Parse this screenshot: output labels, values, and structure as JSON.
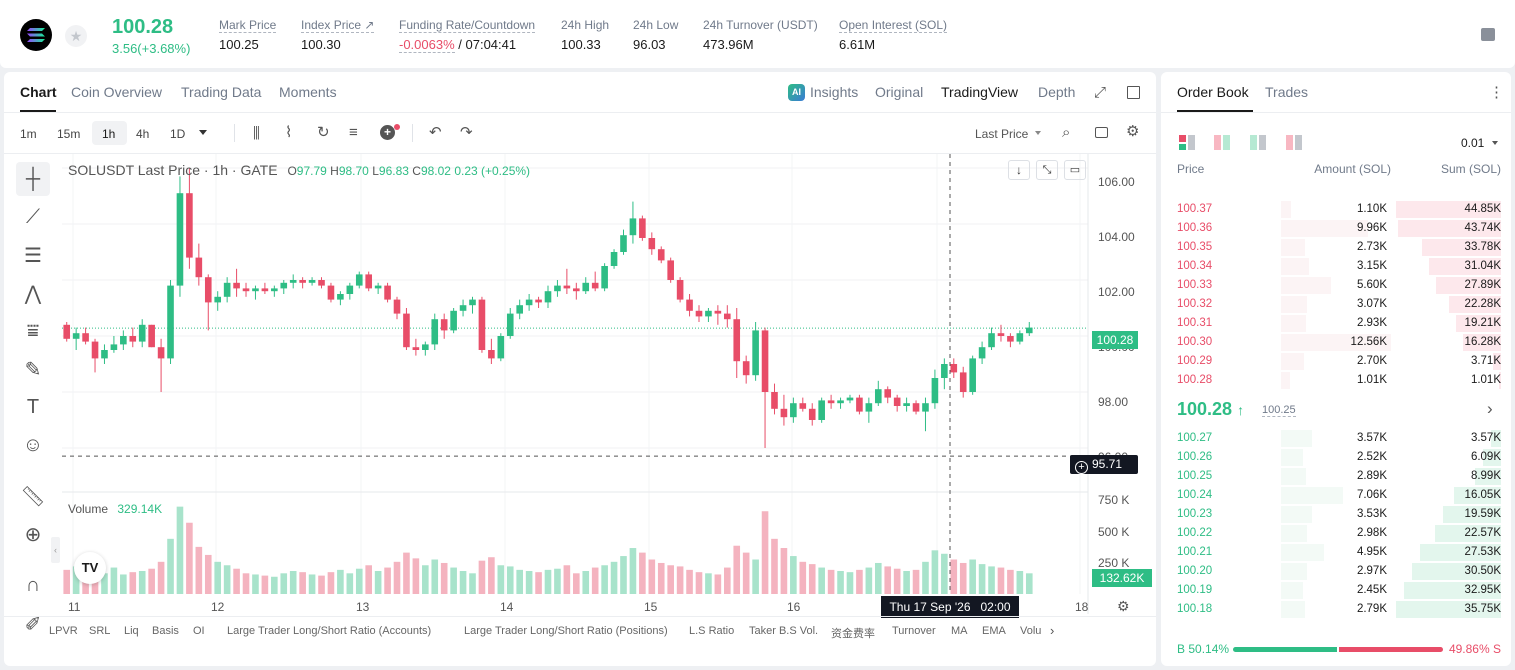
{
  "header": {
    "last_price": "100.28",
    "change": "3.56(+3.68%)",
    "stats": [
      {
        "label": "Mark Price",
        "value": "100.25"
      },
      {
        "label": "Index Price ↗",
        "value": "100.30"
      },
      {
        "label": "Funding Rate/Countdown",
        "value_rate": "-0.0063%",
        "value_countdown": "/ 07:04:41"
      },
      {
        "label": "24h High",
        "value": "100.33"
      },
      {
        "label": "24h Low",
        "value": "96.03"
      },
      {
        "label": "24h Turnover (USDT)",
        "value": "473.96M"
      },
      {
        "label": "Open Interest (SOL)",
        "value": "6.61M"
      }
    ]
  },
  "chart_tabs": [
    "Chart",
    "Coin Overview",
    "Trading Data",
    "Moments"
  ],
  "view_tabs": {
    "insights": "Insights",
    "original": "Original",
    "tradingview": "TradingView",
    "depth": "Depth"
  },
  "intervals": [
    "1m",
    "15m",
    "1h",
    "4h",
    "1D"
  ],
  "price_type": "Last Price",
  "legend": {
    "symbol": "SOLUSDT Last Price · 1h · GATE",
    "o_label": "O",
    "o": "97.79",
    "h_label": "H",
    "h": "98.70",
    "l_label": "L",
    "l": "96.83",
    "c_label": "C",
    "c": "98.02",
    "chg": "0.23 (+0.25%)"
  },
  "volume_label": "Volume",
  "volume_value": "329.14K",
  "last_price_tag": "100.28",
  "crosshair_price_tag": "95.71",
  "volume_tag": "132.62K",
  "crosshair_time": "Thu 17 Sep '26   02:00",
  "indicators": [
    "LPVR",
    "SRL",
    "Liq",
    "Basis",
    "OI",
    "Large Trader Long/Short Ratio (Accounts)",
    "Large Trader Long/Short Ratio (Positions)",
    "L.S Ratio",
    "Taker B.S Vol.",
    "资金费率",
    "Turnover",
    "MA",
    "EMA",
    "Volu"
  ],
  "chart_data": {
    "type": "candlestick",
    "price_ticks": [
      "106.00",
      "104.00",
      "102.00",
      "100.00",
      "98.00",
      "96.00"
    ],
    "volume_ticks": [
      "750 K",
      "500 K",
      "250 K"
    ],
    "x_ticks": [
      "11",
      "12",
      "13",
      "14",
      "15",
      "16",
      "18"
    ],
    "price_axis_range": [
      94.5,
      106.5
    ],
    "volume_axis_range": [
      0,
      870000
    ],
    "colors": {
      "up": "#2ebd85",
      "down": "#e84d68"
    },
    "ohlc": [
      [
        100.4,
        100.5,
        99.8,
        99.9
      ],
      [
        99.9,
        100.3,
        99.5,
        100.1
      ],
      [
        100.1,
        100.3,
        99.7,
        99.8
      ],
      [
        99.8,
        99.9,
        98.7,
        99.2
      ],
      [
        99.2,
        99.7,
        99.0,
        99.5
      ],
      [
        99.5,
        100.0,
        99.4,
        99.7
      ],
      [
        99.7,
        100.2,
        99.5,
        100.0
      ],
      [
        100.0,
        100.3,
        99.6,
        99.8
      ],
      [
        99.8,
        100.6,
        99.6,
        100.4
      ],
      [
        100.4,
        100.4,
        99.6,
        99.6
      ],
      [
        99.6,
        99.9,
        98.0,
        99.2
      ],
      [
        99.2,
        102.0,
        99.0,
        101.8
      ],
      [
        101.8,
        105.7,
        101.4,
        105.1
      ],
      [
        105.1,
        106.0,
        102.4,
        102.8
      ],
      [
        102.8,
        103.3,
        101.8,
        102.1
      ],
      [
        102.1,
        102.2,
        100.2,
        101.2
      ],
      [
        101.2,
        101.6,
        100.9,
        101.4
      ],
      [
        101.4,
        102.1,
        101.2,
        101.9
      ],
      [
        101.9,
        102.4,
        101.4,
        101.7
      ],
      [
        101.7,
        101.9,
        101.4,
        101.6
      ],
      [
        101.6,
        101.8,
        101.3,
        101.7
      ],
      [
        101.7,
        101.9,
        101.5,
        101.6
      ],
      [
        101.6,
        101.8,
        101.4,
        101.7
      ],
      [
        101.7,
        102.0,
        101.5,
        101.9
      ],
      [
        101.9,
        102.2,
        101.7,
        102.0
      ],
      [
        102.0,
        102.1,
        101.7,
        101.9
      ],
      [
        101.9,
        102.1,
        101.8,
        102.0
      ],
      [
        102.0,
        102.1,
        101.7,
        101.8
      ],
      [
        101.8,
        101.9,
        101.2,
        101.3
      ],
      [
        101.3,
        101.6,
        101.1,
        101.5
      ],
      [
        101.5,
        101.9,
        101.3,
        101.8
      ],
      [
        101.8,
        102.3,
        101.7,
        102.2
      ],
      [
        102.2,
        102.3,
        101.6,
        101.7
      ],
      [
        101.7,
        101.9,
        101.5,
        101.8
      ],
      [
        101.8,
        101.9,
        101.2,
        101.3
      ],
      [
        101.3,
        101.4,
        100.6,
        100.8
      ],
      [
        100.8,
        101.0,
        99.5,
        99.6
      ],
      [
        99.6,
        99.9,
        99.3,
        99.5
      ],
      [
        99.5,
        99.8,
        99.3,
        99.7
      ],
      [
        99.7,
        100.8,
        99.5,
        100.6
      ],
      [
        100.6,
        100.8,
        99.9,
        100.2
      ],
      [
        100.2,
        101.0,
        100.1,
        100.9
      ],
      [
        100.9,
        101.3,
        100.7,
        101.1
      ],
      [
        101.1,
        101.4,
        100.8,
        101.3
      ],
      [
        101.3,
        101.4,
        99.4,
        99.5
      ],
      [
        99.5,
        99.9,
        99.0,
        99.2
      ],
      [
        99.2,
        100.1,
        99.1,
        100.0
      ],
      [
        100.0,
        101.0,
        99.9,
        100.8
      ],
      [
        100.8,
        101.3,
        100.6,
        101.1
      ],
      [
        101.1,
        101.5,
        100.9,
        101.3
      ],
      [
        101.3,
        101.4,
        101.0,
        101.2
      ],
      [
        101.2,
        101.8,
        101.0,
        101.6
      ],
      [
        101.6,
        102.0,
        101.4,
        101.8
      ],
      [
        101.8,
        102.4,
        101.5,
        101.7
      ],
      [
        101.7,
        101.9,
        101.3,
        101.6
      ],
      [
        101.6,
        102.1,
        101.5,
        101.9
      ],
      [
        101.9,
        102.3,
        101.6,
        101.7
      ],
      [
        101.7,
        102.6,
        101.6,
        102.5
      ],
      [
        102.5,
        103.1,
        102.4,
        103.0
      ],
      [
        103.0,
        103.8,
        102.9,
        103.6
      ],
      [
        103.6,
        104.8,
        103.3,
        104.2
      ],
      [
        104.2,
        104.3,
        103.4,
        103.5
      ],
      [
        103.5,
        103.7,
        102.9,
        103.1
      ],
      [
        103.1,
        103.2,
        102.6,
        102.7
      ],
      [
        102.7,
        102.8,
        101.9,
        102.0
      ],
      [
        102.0,
        102.1,
        101.2,
        101.3
      ],
      [
        101.3,
        101.5,
        100.7,
        100.9
      ],
      [
        100.9,
        101.1,
        100.5,
        100.7
      ],
      [
        100.7,
        101.0,
        100.5,
        100.9
      ],
      [
        100.9,
        101.1,
        100.4,
        100.8
      ],
      [
        100.8,
        101.1,
        100.3,
        100.6
      ],
      [
        100.6,
        101.0,
        98.5,
        99.1
      ],
      [
        99.1,
        99.3,
        98.3,
        98.6
      ],
      [
        98.6,
        100.5,
        98.4,
        100.2
      ],
      [
        100.2,
        100.3,
        96.0,
        98.0
      ],
      [
        98.0,
        98.3,
        97.2,
        97.4
      ],
      [
        97.4,
        97.9,
        96.8,
        97.1
      ],
      [
        97.1,
        97.8,
        96.9,
        97.6
      ],
      [
        97.6,
        97.8,
        97.3,
        97.4
      ],
      [
        97.4,
        97.6,
        96.8,
        97.0
      ],
      [
        97.0,
        97.8,
        96.9,
        97.7
      ],
      [
        97.7,
        97.9,
        97.4,
        97.6
      ],
      [
        97.6,
        97.8,
        97.4,
        97.7
      ],
      [
        97.7,
        97.9,
        97.6,
        97.8
      ],
      [
        97.8,
        97.9,
        97.2,
        97.3
      ],
      [
        97.3,
        97.8,
        96.9,
        97.6
      ],
      [
        97.6,
        98.4,
        97.5,
        98.1
      ],
      [
        98.1,
        98.2,
        97.6,
        97.8
      ],
      [
        97.8,
        97.9,
        97.3,
        97.5
      ],
      [
        97.5,
        97.8,
        97.3,
        97.6
      ],
      [
        97.6,
        97.7,
        97.2,
        97.3
      ],
      [
        97.3,
        97.8,
        96.6,
        97.6
      ],
      [
        97.6,
        98.8,
        97.4,
        98.5
      ],
      [
        98.5,
        99.2,
        98.1,
        99.0
      ],
      [
        99.0,
        99.2,
        98.5,
        98.7
      ],
      [
        98.7,
        98.9,
        97.8,
        98.0
      ],
      [
        98.0,
        99.3,
        97.9,
        99.2
      ],
      [
        99.2,
        99.8,
        99.0,
        99.6
      ],
      [
        99.6,
        100.3,
        99.5,
        100.1
      ],
      [
        100.1,
        100.4,
        99.8,
        100.0
      ],
      [
        100.0,
        100.1,
        99.6,
        99.8
      ],
      [
        99.8,
        100.2,
        99.7,
        100.1
      ],
      [
        100.1,
        100.5,
        100.0,
        100.3
      ]
    ],
    "volume": [
      210000,
      240000,
      200000,
      190000,
      180000,
      230000,
      170000,
      190000,
      200000,
      220000,
      280000,
      480000,
      760000,
      620000,
      410000,
      340000,
      280000,
      250000,
      220000,
      180000,
      170000,
      160000,
      150000,
      180000,
      200000,
      190000,
      170000,
      160000,
      190000,
      210000,
      180000,
      220000,
      250000,
      200000,
      230000,
      280000,
      360000,
      310000,
      250000,
      300000,
      270000,
      230000,
      200000,
      180000,
      290000,
      320000,
      250000,
      240000,
      210000,
      200000,
      190000,
      210000,
      220000,
      250000,
      180000,
      200000,
      230000,
      250000,
      280000,
      330000,
      400000,
      360000,
      300000,
      270000,
      250000,
      240000,
      210000,
      190000,
      180000,
      170000,
      230000,
      420000,
      360000,
      300000,
      720000,
      480000,
      400000,
      330000,
      280000,
      260000,
      230000,
      210000,
      200000,
      190000,
      210000,
      230000,
      270000,
      240000,
      220000,
      200000,
      210000,
      280000,
      380000,
      350000,
      300000,
      270000,
      300000,
      260000,
      240000,
      230000,
      210000,
      200000,
      180000
    ]
  },
  "orderbook": {
    "tabs": [
      "Order Book",
      "Trades"
    ],
    "tick_size": "0.01",
    "headers": {
      "price": "Price",
      "amount": "Amount (SOL)",
      "sum": "Sum (SOL)"
    },
    "asks": [
      {
        "price": "100.37",
        "amount": "1.10K",
        "sum": "44.85K",
        "amount_frac": 0.09,
        "sum_frac": 1.0
      },
      {
        "price": "100.36",
        "amount": "9.96K",
        "sum": "43.74K",
        "amount_frac": 0.79,
        "sum_frac": 0.98
      },
      {
        "price": "100.35",
        "amount": "2.73K",
        "sum": "33.78K",
        "amount_frac": 0.22,
        "sum_frac": 0.75
      },
      {
        "price": "100.34",
        "amount": "3.15K",
        "sum": "31.04K",
        "amount_frac": 0.25,
        "sum_frac": 0.69
      },
      {
        "price": "100.33",
        "amount": "5.60K",
        "sum": "27.89K",
        "amount_frac": 0.45,
        "sum_frac": 0.62
      },
      {
        "price": "100.32",
        "amount": "3.07K",
        "sum": "22.28K",
        "amount_frac": 0.24,
        "sum_frac": 0.5
      },
      {
        "price": "100.31",
        "amount": "2.93K",
        "sum": "19.21K",
        "amount_frac": 0.23,
        "sum_frac": 0.43
      },
      {
        "price": "100.30",
        "amount": "12.56K",
        "sum": "16.28K",
        "amount_frac": 1.0,
        "sum_frac": 0.36
      },
      {
        "price": "100.29",
        "amount": "2.70K",
        "sum": "3.71K",
        "amount_frac": 0.21,
        "sum_frac": 0.08
      },
      {
        "price": "100.28",
        "amount": "1.01K",
        "sum": "1.01K",
        "amount_frac": 0.08,
        "sum_frac": 0.02
      }
    ],
    "mid_price": "100.28",
    "mid_mark": "100.25",
    "bids": [
      {
        "price": "100.27",
        "amount": "3.57K",
        "sum": "3.57K",
        "amount_frac": 0.28,
        "sum_frac": 0.1
      },
      {
        "price": "100.26",
        "amount": "2.52K",
        "sum": "6.09K",
        "amount_frac": 0.2,
        "sum_frac": 0.17
      },
      {
        "price": "100.25",
        "amount": "2.89K",
        "sum": "8.99K",
        "amount_frac": 0.23,
        "sum_frac": 0.25
      },
      {
        "price": "100.24",
        "amount": "7.06K",
        "sum": "16.05K",
        "amount_frac": 0.56,
        "sum_frac": 0.45
      },
      {
        "price": "100.23",
        "amount": "3.53K",
        "sum": "19.59K",
        "amount_frac": 0.28,
        "sum_frac": 0.55
      },
      {
        "price": "100.22",
        "amount": "2.98K",
        "sum": "22.57K",
        "amount_frac": 0.24,
        "sum_frac": 0.63
      },
      {
        "price": "100.21",
        "amount": "4.95K",
        "sum": "27.53K",
        "amount_frac": 0.39,
        "sum_frac": 0.77
      },
      {
        "price": "100.20",
        "amount": "2.97K",
        "sum": "30.50K",
        "amount_frac": 0.24,
        "sum_frac": 0.85
      },
      {
        "price": "100.19",
        "amount": "2.45K",
        "sum": "32.95K",
        "amount_frac": 0.2,
        "sum_frac": 0.92
      },
      {
        "price": "100.18",
        "amount": "2.79K",
        "sum": "35.75K",
        "amount_frac": 0.22,
        "sum_frac": 1.0
      }
    ],
    "buy_ratio": "50.14%",
    "sell_ratio": "49.86%",
    "buy_label": "B",
    "sell_label": "S",
    "buy_frac": 0.5014
  }
}
